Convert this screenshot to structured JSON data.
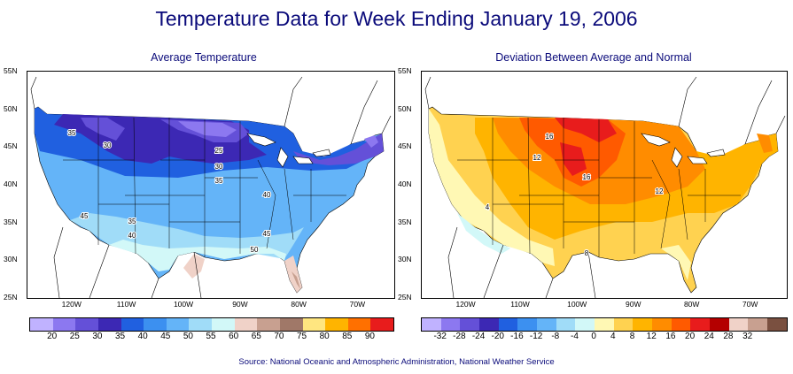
{
  "title": "Temperature Data for Week Ending January 19, 2006",
  "source": "Source:  National Oceanic and Atmospheric Administration, National Weather Service",
  "left_panel": {
    "title": "Average Temperature",
    "lat_labels": [
      "55N",
      "50N",
      "45N",
      "40N",
      "35N",
      "30N",
      "25N"
    ],
    "lon_labels": [
      "120W",
      "110W",
      "100W",
      "90W",
      "80W",
      "70W"
    ],
    "colorbar_labels": [
      "20",
      "25",
      "30",
      "35",
      "40",
      "45",
      "50",
      "55",
      "60",
      "65",
      "70",
      "75",
      "80",
      "85",
      "90"
    ],
    "colors": [
      "#c0b2ff",
      "#8c78f0",
      "#6450d8",
      "#3c28b4",
      "#2060e0",
      "#3c90f0",
      "#64b4f8",
      "#a0dcf8",
      "#d2f8f8",
      "#f0d2c8",
      "#c8a090",
      "#a07868",
      "#ffe680",
      "#ffb400",
      "#ff7000",
      "#e81c1c"
    ],
    "contour_labels": [
      {
        "text": "35",
        "name": "contour-label-35-nw"
      },
      {
        "text": "30",
        "name": "contour-label-30-mt"
      },
      {
        "text": "25",
        "name": "contour-label-25"
      },
      {
        "text": "30",
        "name": "contour-label-30-mw"
      },
      {
        "text": "35",
        "name": "contour-label-35-mw"
      },
      {
        "text": "40",
        "name": "contour-label-40-e"
      },
      {
        "text": "45",
        "name": "contour-label-45-w"
      },
      {
        "text": "35",
        "name": "contour-label-35-sw"
      },
      {
        "text": "40",
        "name": "contour-label-40-sw"
      },
      {
        "text": "45",
        "name": "contour-label-45-se"
      },
      {
        "text": "50",
        "name": "contour-label-50-se"
      }
    ]
  },
  "right_panel": {
    "title": "Deviation Between Average and Normal",
    "lat_labels": [
      "55N",
      "50N",
      "45N",
      "40N",
      "35N",
      "30N",
      "25N"
    ],
    "lon_labels": [
      "120W",
      "110W",
      "100W",
      "90W",
      "80W",
      "70W"
    ],
    "colorbar_labels": [
      "-32",
      "-28",
      "-24",
      "-20",
      "-16",
      "-12",
      "-8",
      "-4",
      "0",
      "4",
      "8",
      "12",
      "16",
      "20",
      "24",
      "28",
      "32"
    ],
    "colors": [
      "#c0b2ff",
      "#8c78f0",
      "#6450d8",
      "#3c28b4",
      "#2060e0",
      "#3c90f0",
      "#64b4f8",
      "#a0dcf8",
      "#d2f8f8",
      "#fff8b4",
      "#ffd250",
      "#ffb400",
      "#ff8c00",
      "#ff5a00",
      "#e81c1c",
      "#b40000",
      "#f0d2c8",
      "#c8a090",
      "#7a5040"
    ],
    "contour_labels": [
      {
        "text": "16",
        "name": "deviation-label-16-n"
      },
      {
        "text": "12",
        "name": "deviation-label-12-w"
      },
      {
        "text": "16",
        "name": "deviation-label-16-c"
      },
      {
        "text": "12",
        "name": "deviation-label-12-e"
      },
      {
        "text": "4",
        "name": "deviation-label-4-w"
      },
      {
        "text": "8",
        "name": "deviation-label-8-s"
      }
    ]
  }
}
